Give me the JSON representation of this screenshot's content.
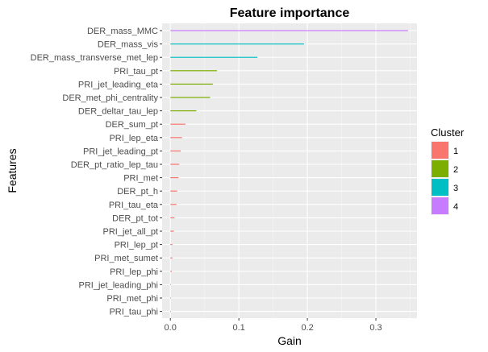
{
  "chart_data": {
    "type": "bar",
    "title": "Feature importance",
    "xlabel": "Gain",
    "ylabel": "Features",
    "xlim": [
      -0.012,
      0.36
    ],
    "x_ticks": [
      0.0,
      0.1,
      0.2,
      0.3
    ],
    "x_tick_labels": [
      "0.0",
      "0.1",
      "0.2",
      "0.3"
    ],
    "grid": true,
    "legend": {
      "title": "Cluster",
      "placement": "right",
      "entries": [
        {
          "label": "1",
          "color": "#F8766D"
        },
        {
          "label": "2",
          "color": "#7CAE00"
        },
        {
          "label": "3",
          "color": "#00BFC4"
        },
        {
          "label": "4",
          "color": "#C77CFF"
        }
      ]
    },
    "features": [
      {
        "name": "DER_mass_MMC",
        "gain": 0.347,
        "cluster": 4
      },
      {
        "name": "DER_mass_vis",
        "gain": 0.195,
        "cluster": 3
      },
      {
        "name": "DER_mass_transverse_met_lep",
        "gain": 0.127,
        "cluster": 3
      },
      {
        "name": "PRI_tau_pt",
        "gain": 0.068,
        "cluster": 2
      },
      {
        "name": "PRI_jet_leading_eta",
        "gain": 0.062,
        "cluster": 2
      },
      {
        "name": "DER_met_phi_centrality",
        "gain": 0.058,
        "cluster": 2
      },
      {
        "name": "DER_deltar_tau_lep",
        "gain": 0.038,
        "cluster": 2
      },
      {
        "name": "DER_sum_pt",
        "gain": 0.022,
        "cluster": 1
      },
      {
        "name": "PRI_lep_eta",
        "gain": 0.017,
        "cluster": 1
      },
      {
        "name": "PRI_jet_leading_pt",
        "gain": 0.015,
        "cluster": 1
      },
      {
        "name": "DER_pt_ratio_lep_tau",
        "gain": 0.013,
        "cluster": 1
      },
      {
        "name": "PRI_met",
        "gain": 0.012,
        "cluster": 1
      },
      {
        "name": "DER_pt_h",
        "gain": 0.01,
        "cluster": 1
      },
      {
        "name": "PRI_tau_eta",
        "gain": 0.009,
        "cluster": 1
      },
      {
        "name": "DER_pt_tot",
        "gain": 0.006,
        "cluster": 1
      },
      {
        "name": "PRI_jet_all_pt",
        "gain": 0.005,
        "cluster": 1
      },
      {
        "name": "PRI_lep_pt",
        "gain": 0.003,
        "cluster": 1
      },
      {
        "name": "PRI_met_sumet",
        "gain": 0.003,
        "cluster": 1
      },
      {
        "name": "PRI_lep_phi",
        "gain": 0.002,
        "cluster": 1
      },
      {
        "name": "PRI_jet_leading_phi",
        "gain": 0.001,
        "cluster": 1
      },
      {
        "name": "PRI_met_phi",
        "gain": 0.001,
        "cluster": 1
      },
      {
        "name": "PRI_tau_phi",
        "gain": 0.001,
        "cluster": 1
      }
    ]
  }
}
